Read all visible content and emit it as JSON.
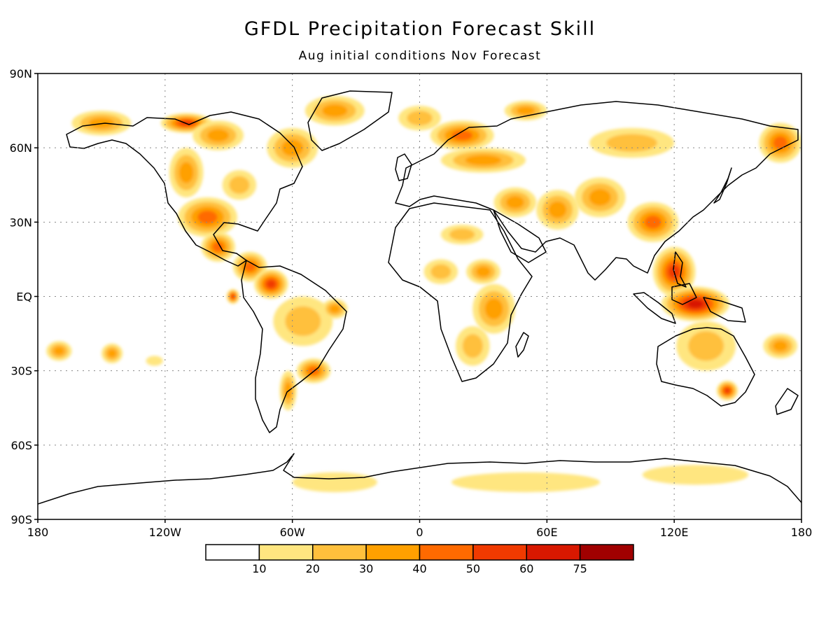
{
  "title": "GFDL Precipitation Forecast Skill",
  "subtitle": "Aug initial conditions   Nov Forecast",
  "lat_labels": [
    "90N",
    "60N",
    "30N",
    "EQ",
    "30S",
    "60S",
    "90S"
  ],
  "lon_labels": [
    "180",
    "120W",
    "60W",
    "0",
    "60E",
    "120E",
    "180"
  ],
  "colorbar": {
    "colors": [
      "#ffffff",
      "#ffe680",
      "#ffc03c",
      "#ffa000",
      "#ff6a00",
      "#f03a00",
      "#d81800",
      "#a00000"
    ],
    "labels": [
      "10",
      "20",
      "30",
      "40",
      "50",
      "60",
      "75"
    ]
  },
  "skill_regions": [
    {
      "lon": -150,
      "lat": 70,
      "rlon": 14,
      "rlat": 5,
      "level": 3
    },
    {
      "lon": -110,
      "lat": 70,
      "rlon": 12,
      "rlat": 4,
      "level": 5
    },
    {
      "lon": -95,
      "lat": 65,
      "rlon": 12,
      "rlat": 6,
      "level": 3
    },
    {
      "lon": -60,
      "lat": 60,
      "rlon": 12,
      "rlat": 8,
      "level": 3
    },
    {
      "lon": -40,
      "lat": 75,
      "rlon": 14,
      "rlat": 6,
      "level": 3
    },
    {
      "lon": -110,
      "lat": 50,
      "rlon": 8,
      "rlat": 10,
      "level": 3
    },
    {
      "lon": -85,
      "lat": 45,
      "rlon": 8,
      "rlat": 6,
      "level": 2
    },
    {
      "lon": -100,
      "lat": 32,
      "rlon": 14,
      "rlat": 8,
      "level": 4
    },
    {
      "lon": -95,
      "lat": 20,
      "rlon": 8,
      "rlat": 6,
      "level": 4
    },
    {
      "lon": -80,
      "lat": 12,
      "rlon": 8,
      "rlat": 6,
      "level": 4
    },
    {
      "lon": -70,
      "lat": 5,
      "rlon": 8,
      "rlat": 6,
      "level": 5
    },
    {
      "lon": -55,
      "lat": -10,
      "rlon": 14,
      "rlat": 10,
      "level": 2
    },
    {
      "lon": -40,
      "lat": -5,
      "rlon": 6,
      "rlat": 4,
      "level": 3
    },
    {
      "lon": -50,
      "lat": -30,
      "rlon": 8,
      "rlat": 5,
      "level": 4
    },
    {
      "lon": -62,
      "lat": -38,
      "rlon": 4,
      "rlat": 8,
      "level": 3
    },
    {
      "lon": -88,
      "lat": 0,
      "rlon": 3,
      "rlat": 3,
      "level": 5
    },
    {
      "lon": -170,
      "lat": -22,
      "rlon": 6,
      "rlat": 4,
      "level": 3
    },
    {
      "lon": -145,
      "lat": -23,
      "rlon": 5,
      "rlat": 4,
      "level": 3
    },
    {
      "lon": -125,
      "lat": -26,
      "rlon": 4,
      "rlat": 2,
      "level": 1
    },
    {
      "lon": 0,
      "lat": 72,
      "rlon": 10,
      "rlat": 5,
      "level": 2
    },
    {
      "lon": 20,
      "lat": 65,
      "rlon": 15,
      "rlat": 6,
      "level": 4
    },
    {
      "lon": 50,
      "lat": 75,
      "rlon": 10,
      "rlat": 4,
      "level": 3
    },
    {
      "lon": 30,
      "lat": 55,
      "rlon": 20,
      "rlat": 5,
      "level": 3
    },
    {
      "lon": 45,
      "lat": 38,
      "rlon": 10,
      "rlat": 6,
      "level": 3
    },
    {
      "lon": 65,
      "lat": 35,
      "rlon": 10,
      "rlat": 8,
      "level": 3
    },
    {
      "lon": 85,
      "lat": 40,
      "rlon": 12,
      "rlat": 8,
      "level": 3
    },
    {
      "lon": 20,
      "lat": 25,
      "rlon": 10,
      "rlat": 4,
      "level": 2
    },
    {
      "lon": 10,
      "lat": 10,
      "rlon": 8,
      "rlat": 5,
      "level": 2
    },
    {
      "lon": 30,
      "lat": 10,
      "rlon": 8,
      "rlat": 5,
      "level": 3
    },
    {
      "lon": 35,
      "lat": -5,
      "rlon": 10,
      "rlat": 10,
      "level": 3
    },
    {
      "lon": 25,
      "lat": -20,
      "rlon": 8,
      "rlat": 8,
      "level": 2
    },
    {
      "lon": 110,
      "lat": 30,
      "rlon": 12,
      "rlat": 8,
      "level": 4
    },
    {
      "lon": 100,
      "lat": 62,
      "rlon": 20,
      "rlat": 6,
      "level": 2
    },
    {
      "lon": 170,
      "lat": 62,
      "rlon": 10,
      "rlat": 8,
      "level": 4
    },
    {
      "lon": 120,
      "lat": 10,
      "rlon": 10,
      "rlat": 10,
      "level": 5
    },
    {
      "lon": 130,
      "lat": -3,
      "rlon": 16,
      "rlat": 7,
      "level": 6
    },
    {
      "lon": 135,
      "lat": -20,
      "rlon": 14,
      "rlat": 10,
      "level": 2
    },
    {
      "lon": 145,
      "lat": -38,
      "rlon": 5,
      "rlat": 4,
      "level": 5
    },
    {
      "lon": 170,
      "lat": -20,
      "rlon": 8,
      "rlat": 5,
      "level": 3
    },
    {
      "lon": -40,
      "lat": -75,
      "rlon": 20,
      "rlat": 4,
      "level": 1
    },
    {
      "lon": 50,
      "lat": -75,
      "rlon": 35,
      "rlat": 4,
      "level": 1
    },
    {
      "lon": 130,
      "lat": -72,
      "rlon": 25,
      "rlat": 4,
      "level": 1
    }
  ]
}
